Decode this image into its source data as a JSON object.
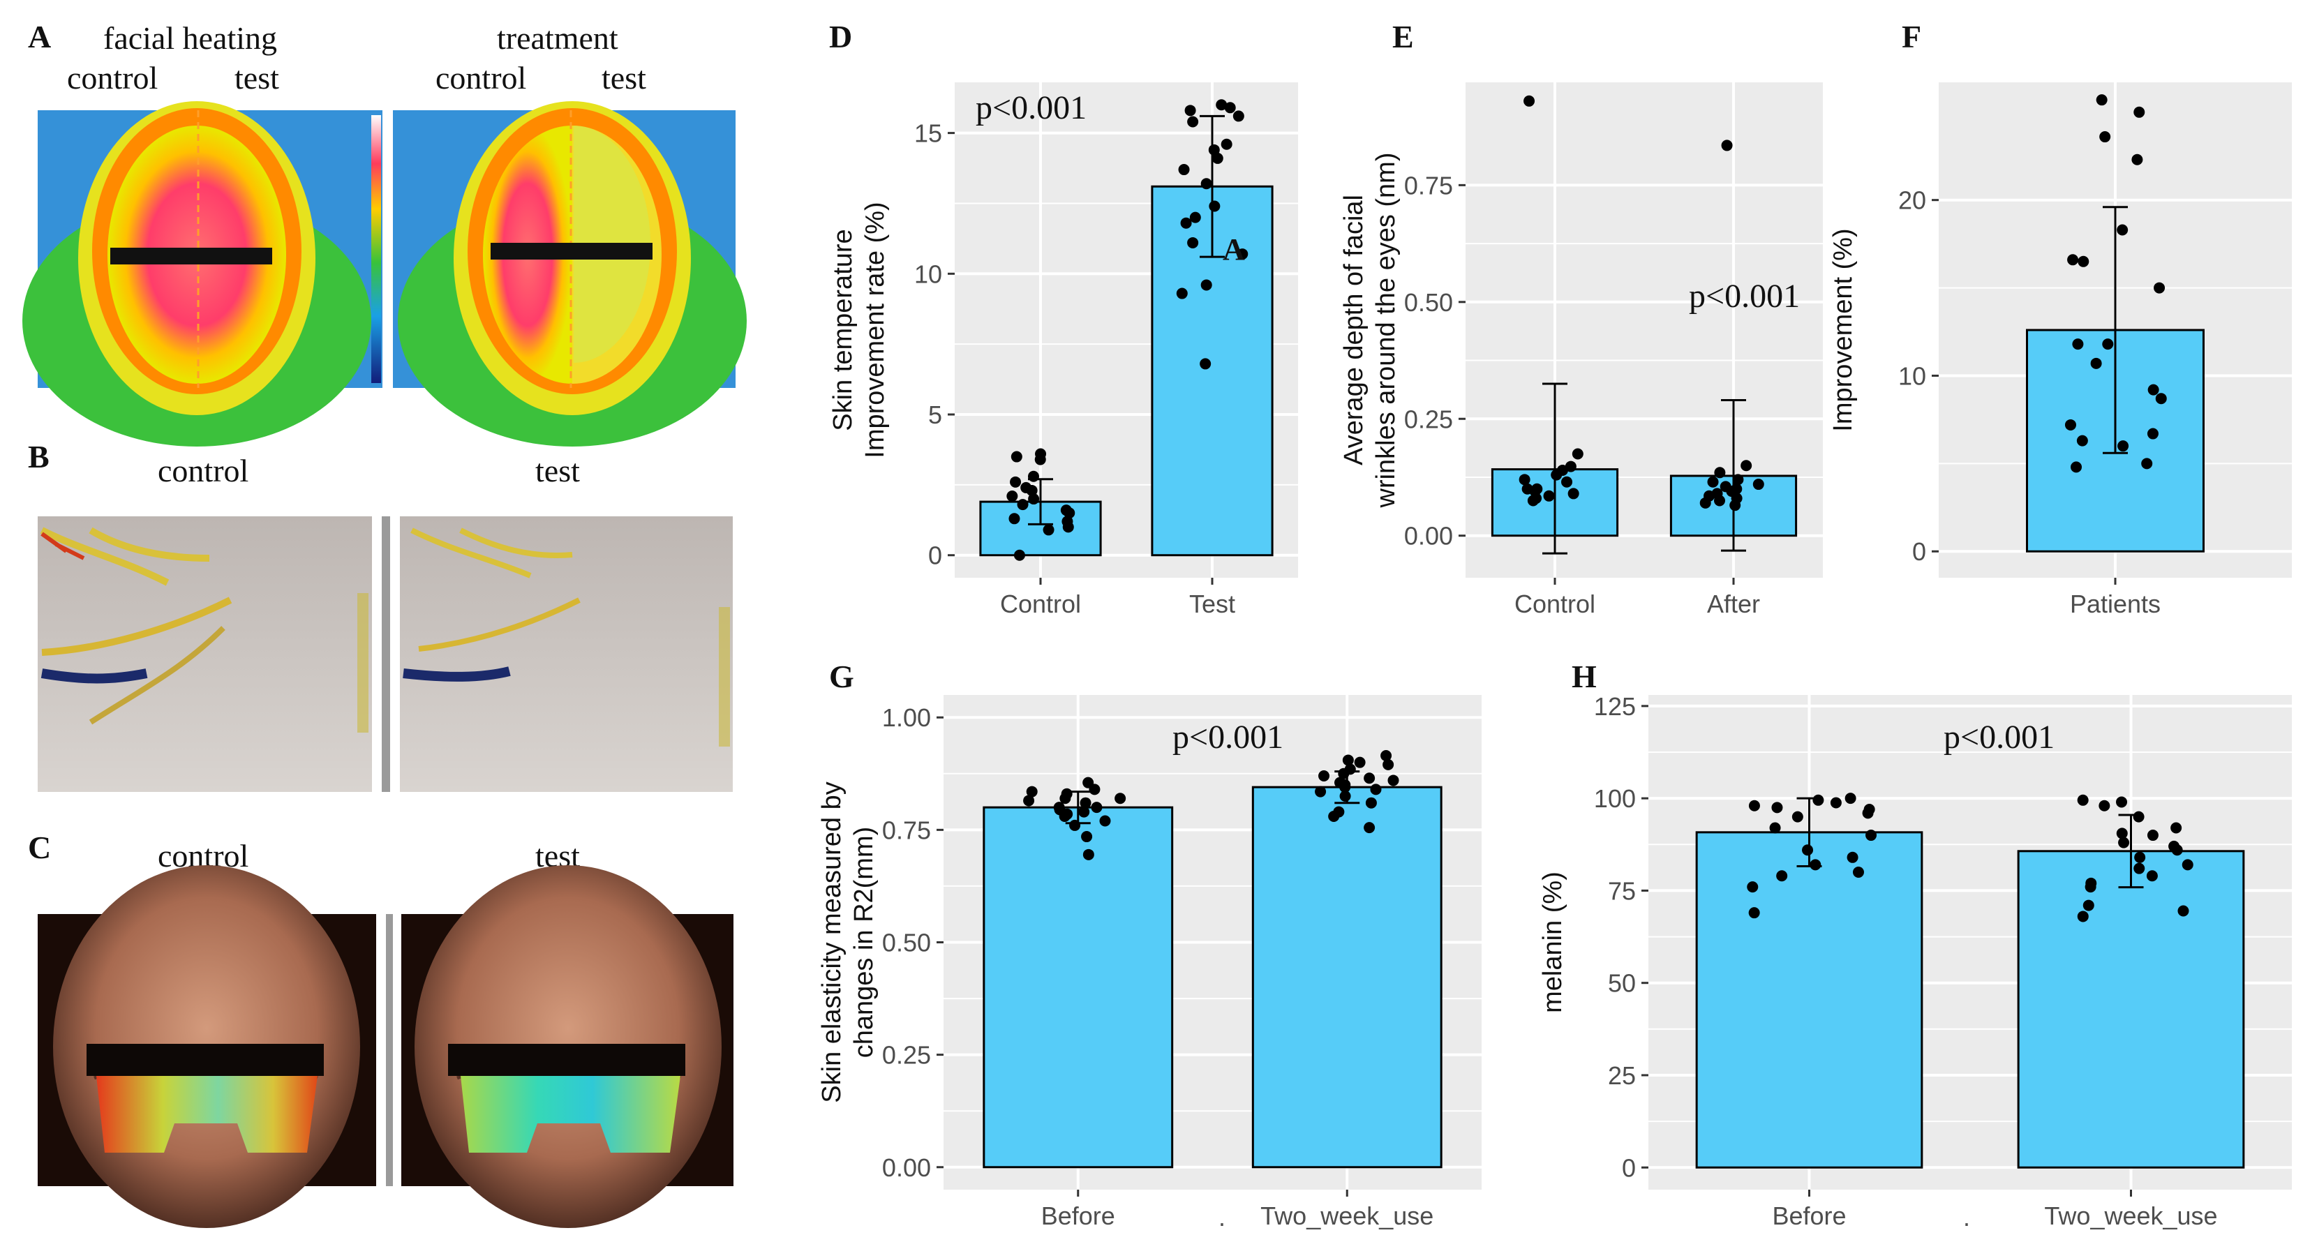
{
  "photos": {
    "A": {
      "letter": "A",
      "left_title": "facial heating",
      "right_title": "treatment",
      "left_label_1": "control",
      "left_label_2": "test",
      "right_label_1": "control",
      "right_label_2": "test"
    },
    "B": {
      "letter": "B",
      "label_left": "control",
      "label_right": "test"
    },
    "C": {
      "letter": "C",
      "label_left": "control",
      "label_right": "test"
    }
  },
  "colors": {
    "bar": "#56ccf8",
    "panel_bg": "#ebebeb",
    "grid": "#ffffff",
    "point": "#000000"
  },
  "chart_data": [
    {
      "id": "D",
      "letter": "D",
      "type": "bar",
      "categories": [
        "Control",
        "Test"
      ],
      "values": [
        1.9,
        13.1
      ],
      "err_low": [
        1.1,
        10.6
      ],
      "err_high": [
        2.7,
        15.6
      ],
      "ylabel": [
        "Skin temperature",
        "Improvement rate (%)"
      ],
      "ylim": [
        -0.8,
        16.8
      ],
      "yticks": [
        0,
        5,
        10,
        15
      ],
      "ytick_labels": [
        "0",
        "5",
        "10",
        "15"
      ],
      "annotation": "p<0.001",
      "mark": "A",
      "points": [
        [
          1.6,
          1.0,
          2.1,
          2.8,
          1.2,
          3.5,
          2.3,
          3.6,
          0.9,
          1.8,
          2.6,
          1.5,
          2.0,
          0.0,
          3.4,
          2.4,
          1.3
        ],
        [
          15.8,
          15.9,
          16.0,
          15.6,
          14.4,
          14.1,
          13.7,
          12.4,
          12.0,
          11.8,
          11.1,
          9.3,
          9.6,
          10.7,
          6.8,
          13.2,
          15.4,
          14.6
        ]
      ]
    },
    {
      "id": "E",
      "letter": "E",
      "type": "bar",
      "categories": [
        "Control",
        "After"
      ],
      "values": [
        0.142,
        0.128
      ],
      "err_low": [
        -0.038,
        -0.032
      ],
      "err_high": [
        0.325,
        0.29
      ],
      "ylabel": [
        "Average depth of facial",
        "wrinkles around the eyes (nm)"
      ],
      "ylim": [
        -0.09,
        0.97
      ],
      "yticks": [
        0,
        0.25,
        0.5,
        0.75
      ],
      "ytick_labels": [
        "0.00",
        "0.25",
        "0.50",
        "0.75"
      ],
      "annotation": "p<0.001",
      "points": [
        [
          0.93,
          0.175,
          0.148,
          0.12,
          0.1,
          0.1,
          0.09,
          0.08,
          0.13,
          0.115,
          0.095,
          0.085,
          0.075,
          0.14
        ],
        [
          0.835,
          0.15,
          0.135,
          0.12,
          0.11,
          0.1,
          0.095,
          0.09,
          0.085,
          0.08,
          0.075,
          0.065,
          0.115,
          0.105,
          0.07
        ]
      ]
    },
    {
      "id": "F",
      "letter": "F",
      "type": "bar",
      "categories": [
        "Patients"
      ],
      "values": [
        12.6
      ],
      "err_low": [
        5.6
      ],
      "err_high": [
        19.6
      ],
      "ylabel": [
        "Improvement (%)"
      ],
      "ylim": [
        -1.5,
        26.7
      ],
      "yticks": [
        0,
        10,
        20
      ],
      "ytick_labels": [
        "0",
        "10",
        "20"
      ],
      "points": [
        [
          25.7,
          25.0,
          23.6,
          22.3,
          18.3,
          16.6,
          16.5,
          15.0,
          11.8,
          11.8,
          10.7,
          9.2,
          8.7,
          7.2,
          6.7,
          6.3,
          6.0,
          5.0,
          4.8
        ]
      ]
    },
    {
      "id": "G",
      "letter": "G",
      "type": "bar",
      "categories": [
        "Before",
        "Two_week_use"
      ],
      "values": [
        0.8,
        0.845
      ],
      "err_low": [
        0.765,
        0.81
      ],
      "err_high": [
        0.835,
        0.88
      ],
      "ylabel": [
        "Skin elasticity measured by",
        "changes in R2(mm)"
      ],
      "ylim": [
        -0.05,
        1.05
      ],
      "yticks": [
        0,
        0.25,
        0.5,
        0.75,
        1.0
      ],
      "ytick_labels": [
        "0.00",
        "0.25",
        "0.50",
        "0.75",
        "1.00"
      ],
      "annotation": "p<0.001",
      "points": [
        [
          0.855,
          0.84,
          0.835,
          0.83,
          0.82,
          0.815,
          0.81,
          0.8,
          0.795,
          0.79,
          0.785,
          0.78,
          0.77,
          0.76,
          0.735,
          0.695,
          0.8,
          0.82
        ],
        [
          0.915,
          0.905,
          0.9,
          0.895,
          0.885,
          0.875,
          0.87,
          0.865,
          0.86,
          0.855,
          0.85,
          0.845,
          0.84,
          0.835,
          0.825,
          0.81,
          0.79,
          0.78,
          0.755
        ]
      ]
    },
    {
      "id": "H",
      "letter": "H",
      "type": "bar",
      "categories": [
        "Before",
        "Two_week_use"
      ],
      "values": [
        90.8,
        85.7
      ],
      "err_low": [
        81.6,
        75.9
      ],
      "err_high": [
        100.0,
        95.5
      ],
      "ylabel": [
        "melanin (%)"
      ],
      "ylim": [
        -6,
        128
      ],
      "yticks": [
        0,
        25,
        50,
        75,
        100,
        125
      ],
      "ytick_labels": [
        "0",
        "25",
        "50",
        "75",
        "100",
        "125"
      ],
      "annotation": "p<0.001",
      "points": [
        [
          100,
          99.5,
          98.8,
          98,
          97.5,
          97,
          96,
          95,
          92,
          90,
          86,
          84,
          82,
          80,
          79,
          76,
          69
        ],
        [
          99.5,
          99,
          98,
          95,
          92,
          90.5,
          90,
          88,
          87,
          86,
          84,
          82,
          81,
          79,
          77,
          76,
          71,
          69.5,
          68
        ]
      ]
    }
  ],
  "watermark_dot": "·"
}
